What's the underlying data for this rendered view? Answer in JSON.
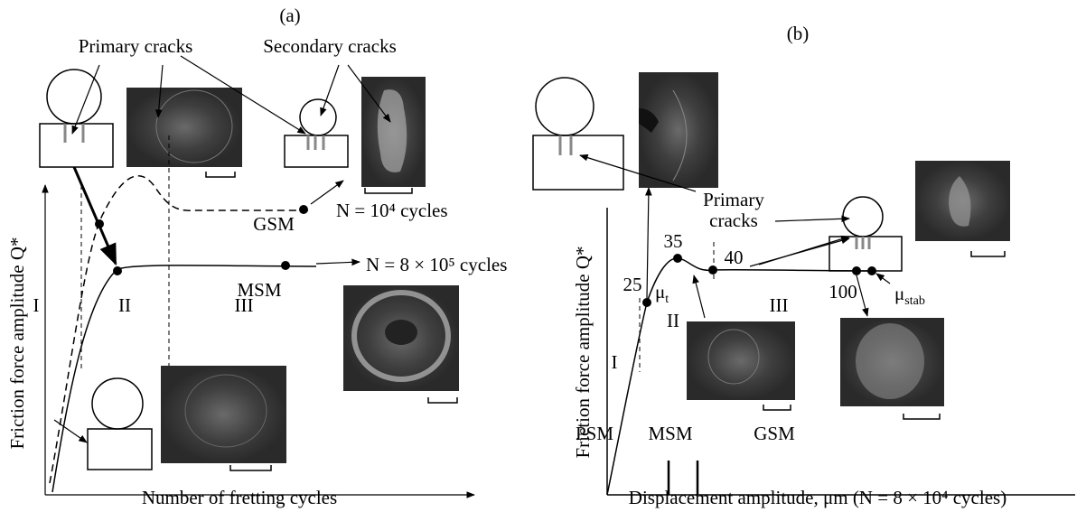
{
  "panel_a": {
    "label": "(a)",
    "y_axis_label": "Friction force amplitude Q*",
    "x_axis_label": "Number of fretting cycles",
    "primary_cracks": "Primary cracks",
    "secondary_cracks": "Secondary cracks",
    "gsm": "GSM",
    "msm": "MSM",
    "n_gsm": "N = 10⁴ cycles",
    "n_msm": "N = 8 × 10⁵ cycles",
    "regions": [
      "I",
      "II",
      "III"
    ]
  },
  "panel_b": {
    "label": "(b)",
    "y_axis_label": "Friction force amplitude Q*",
    "x_axis_label": "Displacement amplitude, μm (N = 8 × 10⁴ cycles)",
    "primary_cracks": [
      "Primary",
      "cracks"
    ],
    "point_labels": [
      "25",
      "35",
      "40",
      "100"
    ],
    "mu_t": {
      "symbol": "μ",
      "subscript": "t"
    },
    "mu_stab": {
      "symbol": "μ",
      "subscript": "stab"
    },
    "regions": [
      "I",
      "II",
      "III"
    ],
    "regimes": [
      "PSM",
      "MSM",
      "GSM"
    ]
  }
}
